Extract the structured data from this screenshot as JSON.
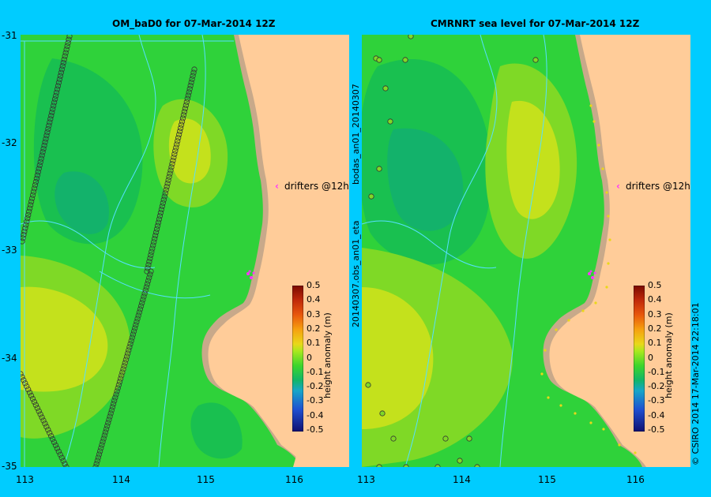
{
  "panels": [
    {
      "title": "OM_baD0 for 07-Mar-2014 12Z",
      "drifters_label": "drifters @12h",
      "legend": {
        "label": "height anomaly (m)",
        "ticks": [
          "0.5",
          "0.4",
          "0.3",
          "0.2",
          "0.1",
          "0",
          "-0.1",
          "-0.2",
          "-0.3",
          "-0.4",
          "-0.5"
        ]
      }
    },
    {
      "title": "CMRNRT sea level  for 07-Mar-2014 12Z",
      "drifters_label": "drifters @12h",
      "legend": {
        "label": "height anomaly (m)",
        "ticks": [
          "0.5",
          "0.4",
          "0.3",
          "0.2",
          "0.1",
          "0",
          "-0.1",
          "-0.2",
          "-0.3",
          "-0.4",
          "-0.5"
        ]
      },
      "side_labels": [
        "bodas_an01_20140307",
        "20140307.obs_an01_eta"
      ]
    }
  ],
  "axes": {
    "lat_labels": [
      "-31",
      "-32",
      "-33",
      "-34",
      "-35"
    ],
    "lon_labels": [
      "113",
      "114",
      "115",
      "116"
    ]
  },
  "credit": "© CSIRO 2014  17-Mar-2014 22:18:01",
  "colors": {
    "background": "#00ccff",
    "land": "#ffcc99",
    "coast": "#c8a98a",
    "contour": "#55e0ff",
    "drifter": "#ff33ff"
  },
  "colormap": [
    "#7a0a00",
    "#c0290a",
    "#e8570c",
    "#f6a00f",
    "#e9d819",
    "#a8e81e",
    "#3cd52c",
    "#11b56a",
    "#17a6c8",
    "#1f4fd0",
    "#101070"
  ]
}
